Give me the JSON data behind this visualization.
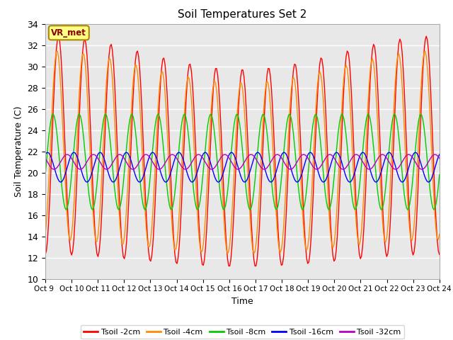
{
  "title": "Soil Temperatures Set 2",
  "xlabel": "Time",
  "ylabel": "Soil Temperature (C)",
  "ylim": [
    10,
    34
  ],
  "yticks": [
    10,
    12,
    14,
    16,
    18,
    20,
    22,
    24,
    26,
    28,
    30,
    32,
    34
  ],
  "xtick_labels": [
    "Oct 9 ",
    "Oct 10",
    "Oct 11",
    "Oct 12",
    "Oct 13",
    "Oct 14",
    "Oct 15",
    "Oct 16",
    "Oct 17",
    "Oct 18",
    "Oct 19",
    "Oct 20",
    "Oct 21",
    "Oct 22",
    "Oct 23",
    "Oct 24"
  ],
  "series_colors": [
    "#FF0000",
    "#FF8C00",
    "#00CC00",
    "#0000FF",
    "#BB00BB"
  ],
  "series_labels": [
    "Tsoil -2cm",
    "Tsoil -4cm",
    "Tsoil -8cm",
    "Tsoil -16cm",
    "Tsoil -32cm"
  ],
  "plot_bg_color": "#E8E8E8",
  "grid_color": "#FFFFFF",
  "annotation_text": "VR_met",
  "annotation_color": "#8B0000",
  "annotation_bg": "#FFFF88",
  "annotation_border": "#AA8800",
  "amp2": 9.8,
  "amp4": 8.5,
  "amp8": 4.5,
  "amp16": 1.4,
  "amp32": 0.7,
  "mean2": 21.5,
  "mean4": 21.5,
  "mean8": 21.0,
  "mean16": 20.5,
  "mean32": 21.0,
  "phase4": 0.35,
  "phase8": 1.3,
  "phase16": 2.6,
  "phase32": 4.2,
  "n_points": 360,
  "num_days": 15
}
